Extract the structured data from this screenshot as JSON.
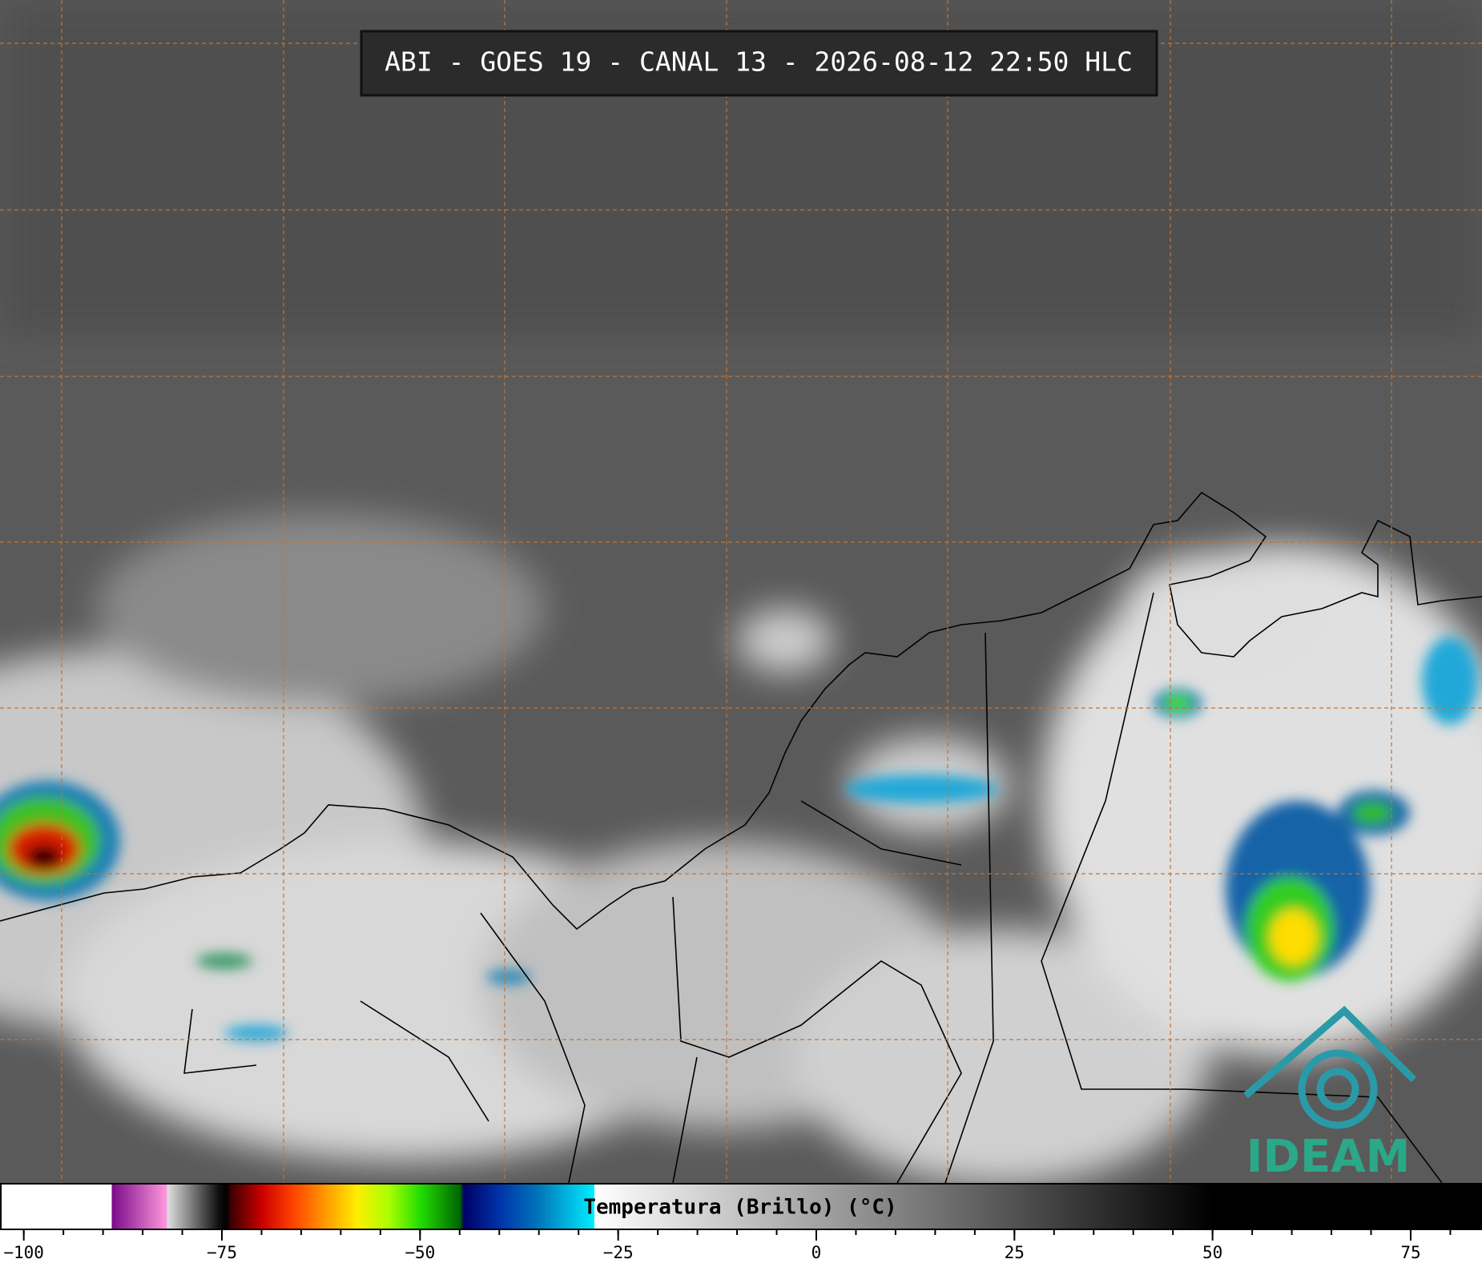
{
  "header": {
    "title": "ABI - GOES 19 - CANAL 13 - 2026-08-12 22:50 HLC"
  },
  "colorbar": {
    "label": "Temperatura (Brillo) (°C)",
    "range": [
      -103,
      84
    ],
    "ticks": [
      {
        "value": -100,
        "label": "−100"
      },
      {
        "value": -75,
        "label": "−75"
      },
      {
        "value": -50,
        "label": "−50"
      },
      {
        "value": -25,
        "label": "−25"
      },
      0,
      25,
      50,
      75
    ],
    "minor_ticks": [
      -100,
      -95,
      -90,
      -85,
      -80,
      -75,
      -70,
      -65,
      -60,
      -55,
      -50,
      -45,
      -40,
      -35,
      -30,
      -25,
      -20,
      -15,
      -10,
      -5,
      0,
      5,
      10,
      15,
      20,
      25,
      30,
      35,
      40,
      45,
      50,
      55,
      60,
      65,
      70,
      75,
      80
    ],
    "color_stops": [
      {
        "value": -103,
        "color": "#ffffff"
      },
      {
        "value": -89,
        "color": "#ffffff"
      },
      {
        "value": -89,
        "color": "#7a0a8a"
      },
      {
        "value": -82,
        "color": "#ff99dd"
      },
      {
        "value": -82,
        "color": "#e0e0e0"
      },
      {
        "value": -75.5,
        "color": "#101010"
      },
      {
        "value": -74.5,
        "color": "#000000"
      },
      {
        "value": -74,
        "color": "#3a0000"
      },
      {
        "value": -70,
        "color": "#cc0000"
      },
      {
        "value": -66,
        "color": "#ff4400"
      },
      {
        "value": -62,
        "color": "#ff9900"
      },
      {
        "value": -58,
        "color": "#ffee00"
      },
      {
        "value": -54,
        "color": "#aaff00"
      },
      {
        "value": -50,
        "color": "#22dd00"
      },
      {
        "value": -45,
        "color": "#006600"
      },
      {
        "value": -44.5,
        "color": "#000066"
      },
      {
        "value": -40,
        "color": "#0033aa"
      },
      {
        "value": -35,
        "color": "#0077bb"
      },
      {
        "value": -28,
        "color": "#00eeff"
      },
      {
        "value": -28,
        "color": "#ffffff"
      },
      {
        "value": 50,
        "color": "#000000"
      },
      {
        "value": 84,
        "color": "#000000"
      }
    ]
  },
  "logo": {
    "text": "IDEAM"
  }
}
